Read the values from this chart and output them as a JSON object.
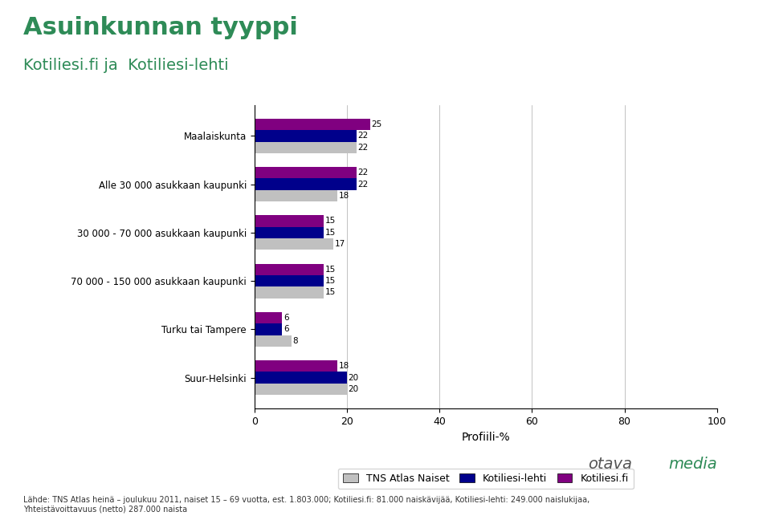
{
  "title": "Asuinkunnan tyyppi",
  "subtitle": "Kotiliesi.fi ja  Kotiliesi-lehti",
  "categories": [
    "Suur-Helsinki",
    "Turku tai Tampere",
    "70 000 - 150 000 asukkaan kaupunki",
    "30 000 - 70 000 asukkaan kaupunki",
    "Alle 30 000 asukkaan kaupunki",
    "Maalaiskunta"
  ],
  "series": {
    "TNS Atlas Naiset": [
      20,
      8,
      15,
      17,
      18,
      22
    ],
    "Kotiliesi-lehti": [
      20,
      6,
      15,
      15,
      22,
      22
    ],
    "Kotiliesi.fi": [
      18,
      6,
      15,
      15,
      22,
      25
    ]
  },
  "colors": {
    "TNS Atlas Naiset": "#c0c0c0",
    "Kotiliesi-lehti": "#00008b",
    "Kotiliesi.fi": "#800080"
  },
  "xlabel": "Profiili-%",
  "xlim": [
    0,
    100
  ],
  "xticks": [
    0,
    20,
    40,
    60,
    80,
    100
  ],
  "background_color": "#ffffff",
  "title_color": "#2e8b57",
  "subtitle_color": "#2e8b57",
  "title_fontsize": 22,
  "subtitle_fontsize": 14,
  "footnote": "Lähde: TNS Atlas heinä – joulukuu 2011, naiset 15 – 69 vuotta, est. 1.803.000; Kotiliesi.fi: 81.000 naiskävijää, Kotiliesi-lehti: 249.000 naislukijaa,\nYhteistävoittavuus (netto) 287.000 naista"
}
